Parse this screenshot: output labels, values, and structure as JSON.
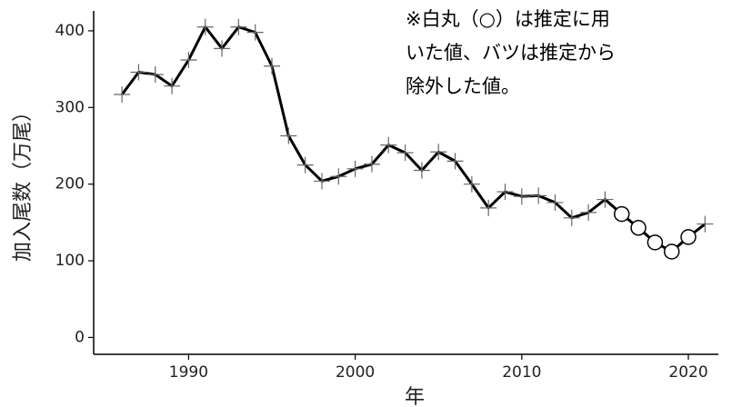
{
  "chart_data": {
    "type": "line",
    "annotation": [
      "※白丸（○）は推定に用",
      "いた値、バツは推定から",
      "除外した値。"
    ],
    "xlabel": "年",
    "ylabel": "加入尾数（万尾）",
    "x": [
      1986,
      1987,
      1988,
      1989,
      1990,
      1991,
      1992,
      1993,
      1994,
      1995,
      1996,
      1997,
      1998,
      1999,
      2000,
      2001,
      2002,
      2003,
      2004,
      2005,
      2006,
      2007,
      2008,
      2009,
      2010,
      2011,
      2012,
      2013,
      2014,
      2015,
      2016,
      2017,
      2018,
      2019,
      2020,
      2021
    ],
    "values": [
      317,
      346,
      343,
      328,
      362,
      405,
      377,
      405,
      398,
      354,
      263,
      225,
      204,
      210,
      220,
      226,
      251,
      241,
      218,
      242,
      230,
      200,
      169,
      190,
      184,
      185,
      176,
      156,
      163,
      180,
      161,
      143,
      124,
      112,
      131,
      148
    ],
    "markers": [
      "cross",
      "cross",
      "cross",
      "cross",
      "cross",
      "cross",
      "cross",
      "cross",
      "cross",
      "cross",
      "cross",
      "cross",
      "cross",
      "cross",
      "cross",
      "cross",
      "cross",
      "cross",
      "cross",
      "cross",
      "cross",
      "cross",
      "cross",
      "cross",
      "cross",
      "cross",
      "cross",
      "cross",
      "cross",
      "cross",
      "circle",
      "circle",
      "circle",
      "circle",
      "circle",
      "cross"
    ],
    "color": "#000000",
    "xlim": [
      1984.3,
      2021.8
    ],
    "xticks": [
      1990,
      2000,
      2010,
      2020
    ],
    "ylim": [
      -22,
      426
    ],
    "yticks": [
      0,
      100,
      200,
      300,
      400
    ]
  }
}
